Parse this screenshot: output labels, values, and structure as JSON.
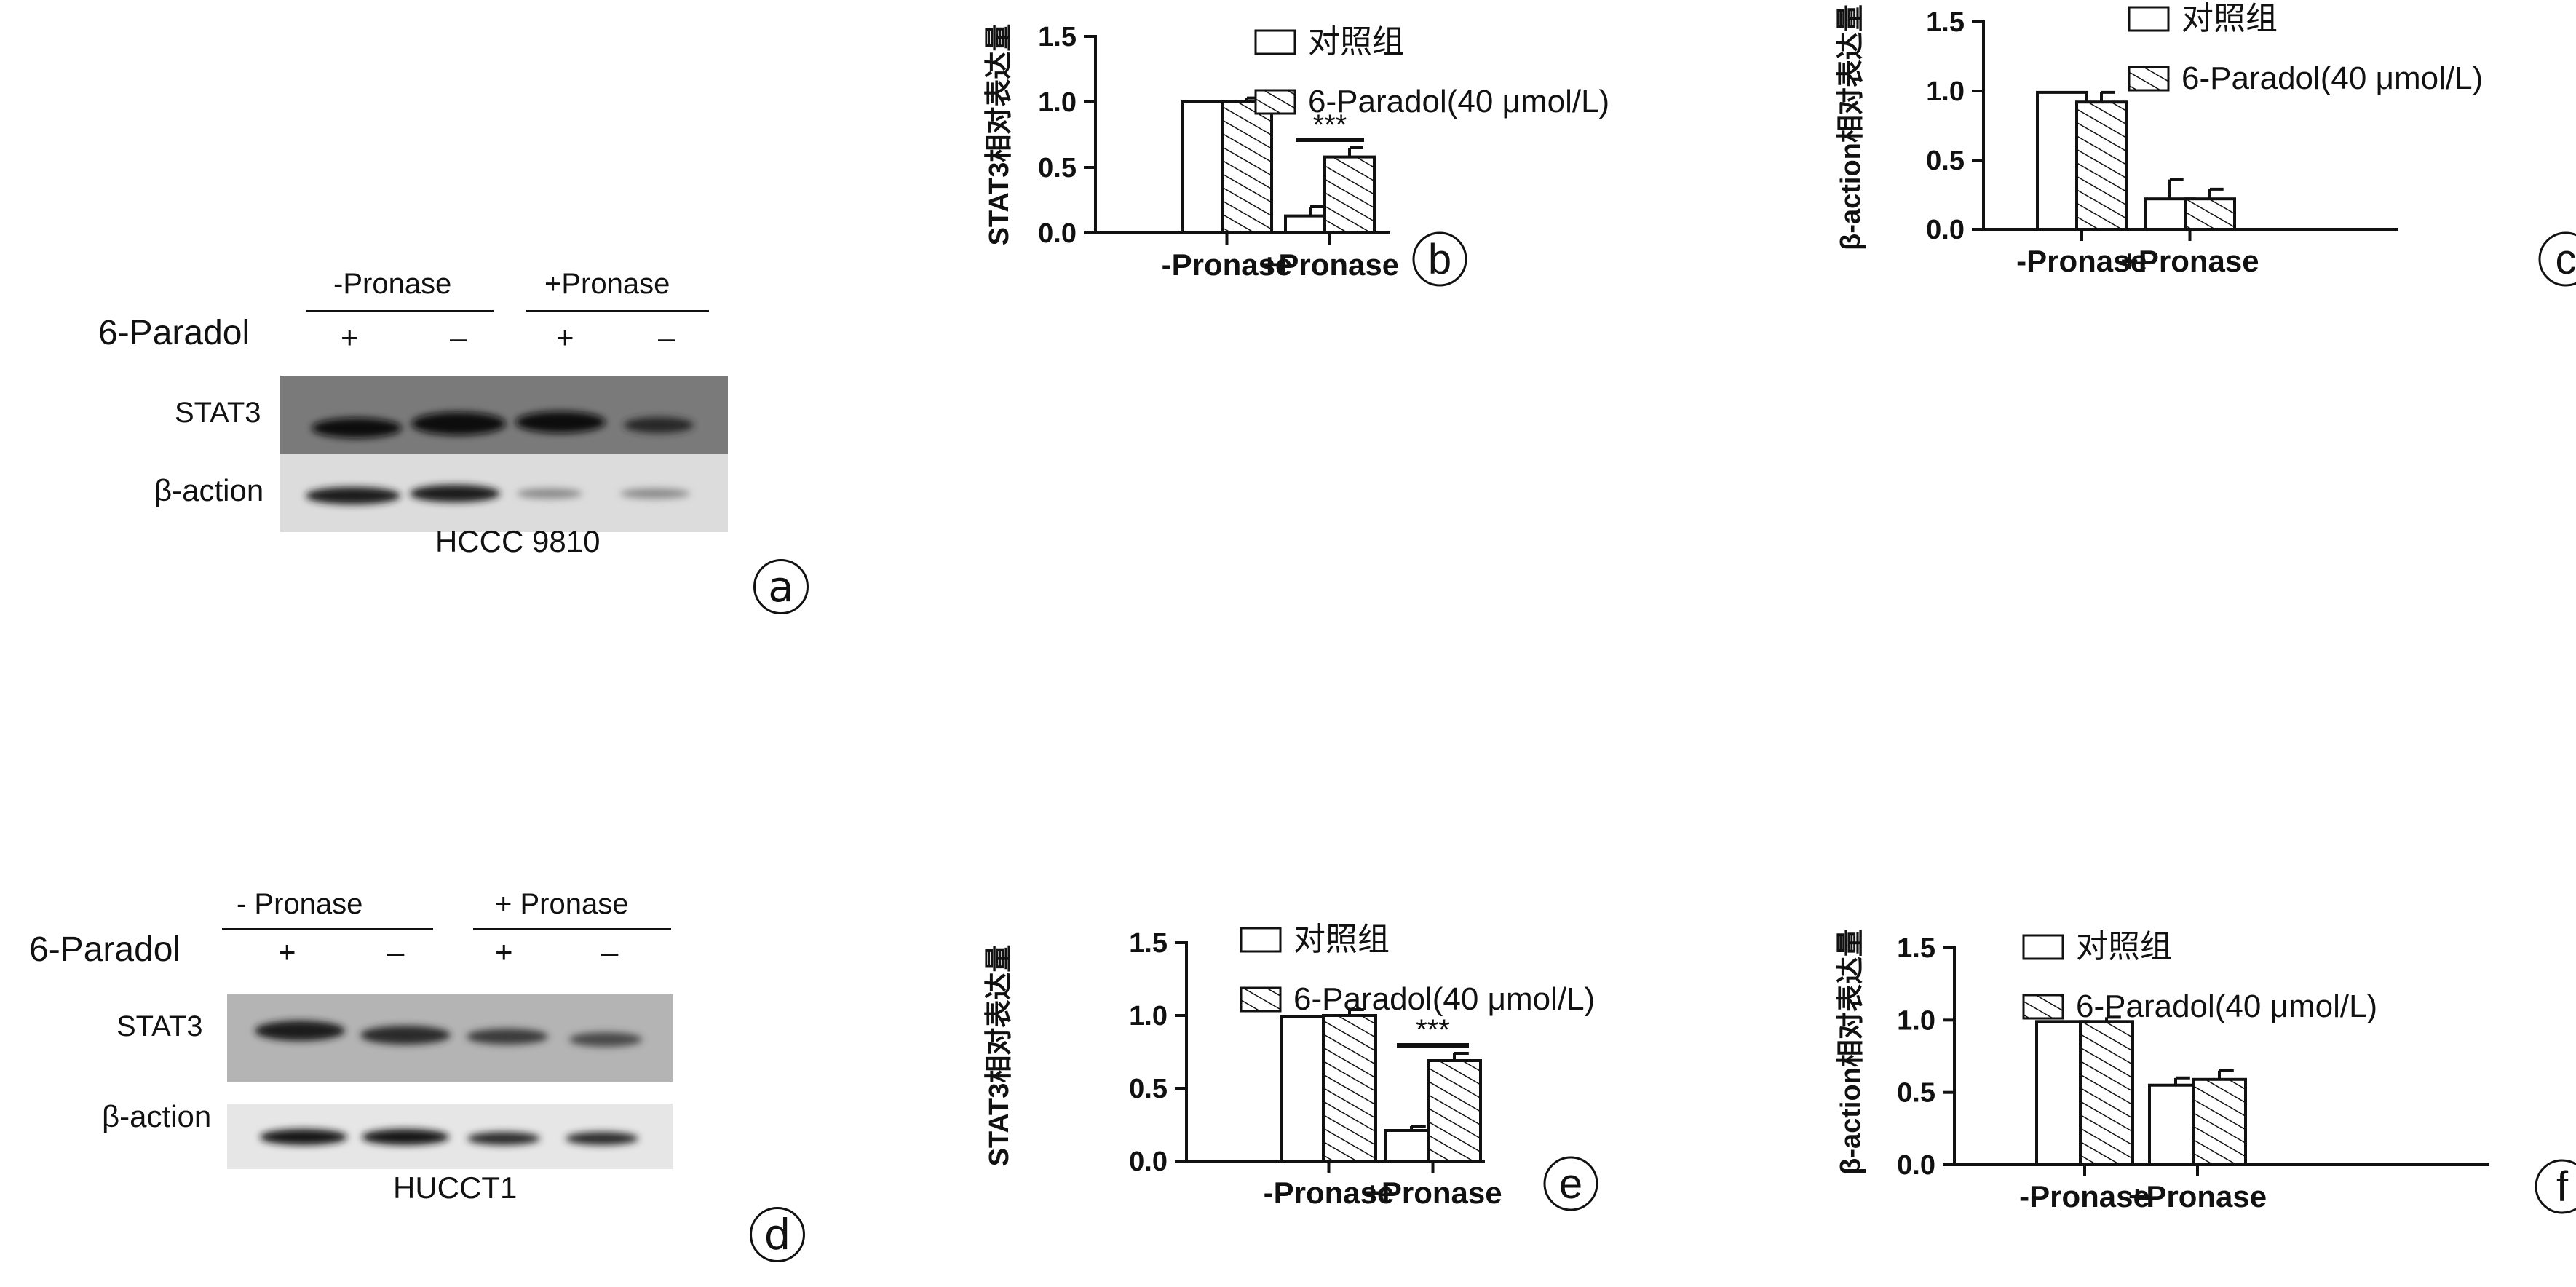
{
  "legend": {
    "control": "对照组",
    "treated": "6-Paradol(40 μmol/L)"
  },
  "significance": "***",
  "blots": [
    {
      "letter": "a",
      "cell_line": "HCCC 9810",
      "row_label": "6-Paradol",
      "group_neg": "-Pronase",
      "group_pos": "+Pronase",
      "lane_signs": [
        "+",
        "–",
        "+",
        "–"
      ],
      "band_labels": [
        "STAT3",
        "β-action"
      ]
    },
    {
      "letter": "d",
      "cell_line": "HUCCT1",
      "row_label": "6-Paradol",
      "group_neg": "- Pronase",
      "group_pos": "+ Pronase",
      "lane_signs": [
        "+",
        "–",
        "+",
        "–"
      ],
      "band_labels": [
        "STAT3",
        "β-action"
      ]
    }
  ],
  "chart_data": [
    {
      "letter": "b",
      "type": "bar",
      "categories": [
        "-Pronase",
        "+Pronase"
      ],
      "ylabel": "STAT3相对表达量",
      "ylim": [
        0,
        1.5
      ],
      "yticks": [
        "0.0",
        "0.5",
        "1.0",
        "1.5"
      ],
      "series": [
        {
          "name": "对照组",
          "values": [
            1.0,
            0.13
          ],
          "errors": [
            0,
            0.07
          ]
        },
        {
          "name": "6-Paradol(40 μmol/L)",
          "values": [
            1.0,
            0.58
          ],
          "errors": [
            0.03,
            0.07
          ]
        }
      ],
      "significance": [
        {
          "category": 1,
          "label": "***"
        }
      ],
      "legend": "top"
    },
    {
      "letter": "c",
      "type": "bar",
      "categories": [
        "-Pronase",
        "+Pronase"
      ],
      "ylabel": "β-action相对表达量",
      "ylim": [
        0,
        1.5
      ],
      "yticks": [
        "0.0",
        "0.5",
        "1.0",
        "1.5"
      ],
      "series": [
        {
          "name": "对照组",
          "values": [
            0.99,
            0.22
          ],
          "errors": [
            0,
            0.14
          ]
        },
        {
          "name": "6-Paradol(40 μmol/L)",
          "values": [
            0.92,
            0.22
          ],
          "errors": [
            0.07,
            0.07
          ]
        }
      ],
      "significance": [],
      "legend": "top"
    },
    {
      "letter": "e",
      "type": "bar",
      "categories": [
        "-Pronase",
        "+Pronase"
      ],
      "ylabel": "STAT3相对表达量",
      "ylim": [
        0,
        1.5
      ],
      "yticks": [
        "0.0",
        "0.5",
        "1.0",
        "1.5"
      ],
      "series": [
        {
          "name": "对照组",
          "values": [
            0.99,
            0.21
          ],
          "errors": [
            0,
            0.03
          ]
        },
        {
          "name": "6-Paradol(40 μmol/L)",
          "values": [
            1.0,
            0.69
          ],
          "errors": [
            0.04,
            0.05
          ]
        }
      ],
      "significance": [
        {
          "category": 1,
          "label": "***"
        }
      ],
      "legend": "top"
    },
    {
      "letter": "f",
      "type": "bar",
      "categories": [
        "-Pronase",
        "+Pronase"
      ],
      "ylabel": "β-action相对表达量",
      "ylim": [
        0,
        1.5
      ],
      "yticks": [
        "0.0",
        "0.5",
        "1.0",
        "1.5"
      ],
      "series": [
        {
          "name": "对照组",
          "values": [
            0.99,
            0.55
          ],
          "errors": [
            0,
            0.05
          ]
        },
        {
          "name": "6-Paradol(40 μmol/L)",
          "values": [
            0.99,
            0.59
          ],
          "errors": [
            0.03,
            0.06
          ]
        }
      ],
      "significance": [],
      "legend": "top"
    }
  ]
}
